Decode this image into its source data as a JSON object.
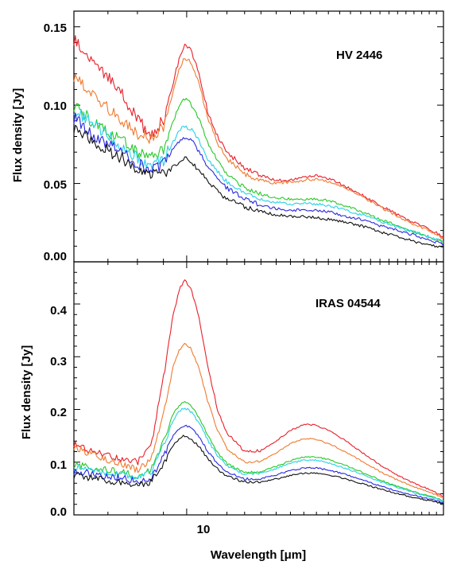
{
  "chart_data": [
    {
      "type": "line",
      "panel_label": "HV 2446",
      "ylabel": "Flux density [Jy]",
      "xlabel": "",
      "x_scale": "log",
      "xlim": [
        6.0,
        32.0
      ],
      "ylim": [
        0.0,
        0.16
      ],
      "y_ticks": [
        "0.00",
        "0.05",
        "0.10",
        "0.15"
      ],
      "y_tick_values": [
        0.0,
        0.05,
        0.1,
        0.15
      ],
      "x_ticks": [],
      "x_tick_values": [],
      "series": [
        {
          "color": "#e8202a",
          "x": [
            6.0,
            6.5,
            7.0,
            7.5,
            8.0,
            8.5,
            9.0,
            9.4,
            9.7,
            9.9,
            10.2,
            10.6,
            11.0,
            11.5,
            12.0,
            13.0,
            14.0,
            15.0,
            16.0,
            17.0,
            18.0,
            19.0,
            20.0,
            22.0,
            24.0,
            26.0,
            28.0,
            30.0,
            32.0
          ],
          "y": [
            0.142,
            0.128,
            0.118,
            0.106,
            0.09,
            0.082,
            0.09,
            0.114,
            0.132,
            0.139,
            0.136,
            0.118,
            0.096,
            0.08,
            0.07,
            0.06,
            0.055,
            0.052,
            0.052,
            0.054,
            0.055,
            0.053,
            0.05,
            0.043,
            0.036,
            0.03,
            0.025,
            0.021,
            0.016
          ]
        },
        {
          "color": "#f07a30",
          "x": [
            6.0,
            6.5,
            7.0,
            7.5,
            8.0,
            8.5,
            9.0,
            9.4,
            9.7,
            9.9,
            10.2,
            10.6,
            11.0,
            11.5,
            12.0,
            13.0,
            14.0,
            15.0,
            16.0,
            17.0,
            18.0,
            19.0,
            20.0,
            22.0,
            24.0,
            26.0,
            28.0,
            30.0,
            32.0
          ],
          "y": [
            0.119,
            0.106,
            0.098,
            0.09,
            0.082,
            0.078,
            0.086,
            0.108,
            0.124,
            0.13,
            0.128,
            0.112,
            0.092,
            0.076,
            0.066,
            0.056,
            0.052,
            0.05,
            0.051,
            0.052,
            0.053,
            0.051,
            0.049,
            0.042,
            0.035,
            0.029,
            0.024,
            0.02,
            0.015
          ]
        },
        {
          "color": "#28c828",
          "x": [
            6.0,
            6.5,
            7.0,
            7.5,
            8.0,
            8.5,
            9.0,
            9.4,
            9.7,
            9.9,
            10.2,
            10.6,
            11.0,
            11.5,
            12.0,
            13.0,
            14.0,
            15.0,
            16.0,
            17.0,
            18.0,
            19.0,
            20.0,
            22.0,
            24.0,
            26.0,
            28.0,
            30.0,
            32.0
          ],
          "y": [
            0.1,
            0.09,
            0.083,
            0.077,
            0.07,
            0.066,
            0.072,
            0.09,
            0.101,
            0.104,
            0.101,
            0.09,
            0.076,
            0.064,
            0.056,
            0.047,
            0.043,
            0.041,
            0.04,
            0.04,
            0.04,
            0.039,
            0.037,
            0.032,
            0.027,
            0.023,
            0.019,
            0.016,
            0.012
          ]
        },
        {
          "color": "#2ad0e8",
          "x": [
            6.0,
            6.5,
            7.0,
            7.5,
            8.0,
            8.5,
            9.0,
            9.4,
            9.7,
            9.9,
            10.2,
            10.6,
            11.0,
            11.5,
            12.0,
            13.0,
            14.0,
            15.0,
            16.0,
            17.0,
            18.0,
            19.0,
            20.0,
            22.0,
            24.0,
            26.0,
            28.0,
            30.0,
            32.0
          ],
          "y": [
            0.098,
            0.088,
            0.08,
            0.073,
            0.066,
            0.062,
            0.065,
            0.076,
            0.084,
            0.087,
            0.085,
            0.077,
            0.066,
            0.058,
            0.051,
            0.044,
            0.04,
            0.038,
            0.037,
            0.037,
            0.037,
            0.036,
            0.034,
            0.03,
            0.026,
            0.022,
            0.019,
            0.016,
            0.013
          ]
        },
        {
          "color": "#2828e0",
          "x": [
            6.0,
            6.5,
            7.0,
            7.5,
            8.0,
            8.5,
            9.0,
            9.4,
            9.7,
            9.9,
            10.2,
            10.6,
            11.0,
            11.5,
            12.0,
            13.0,
            14.0,
            15.0,
            16.0,
            17.0,
            18.0,
            19.0,
            20.0,
            22.0,
            24.0,
            26.0,
            28.0,
            30.0,
            32.0
          ],
          "y": [
            0.092,
            0.082,
            0.075,
            0.069,
            0.063,
            0.059,
            0.062,
            0.072,
            0.078,
            0.08,
            0.078,
            0.07,
            0.061,
            0.053,
            0.047,
            0.04,
            0.036,
            0.034,
            0.033,
            0.033,
            0.033,
            0.032,
            0.03,
            0.027,
            0.023,
            0.02,
            0.017,
            0.014,
            0.011
          ]
        },
        {
          "color": "#101010",
          "x": [
            6.0,
            6.5,
            7.0,
            7.5,
            8.0,
            8.5,
            9.0,
            9.4,
            9.7,
            9.9,
            10.2,
            10.6,
            11.0,
            11.5,
            12.0,
            13.0,
            14.0,
            15.0,
            16.0,
            17.0,
            18.0,
            19.0,
            20.0,
            22.0,
            24.0,
            26.0,
            28.0,
            30.0,
            32.0
          ],
          "y": [
            0.086,
            0.077,
            0.071,
            0.066,
            0.059,
            0.055,
            0.055,
            0.06,
            0.064,
            0.066,
            0.064,
            0.058,
            0.051,
            0.045,
            0.04,
            0.035,
            0.032,
            0.03,
            0.029,
            0.029,
            0.028,
            0.027,
            0.026,
            0.023,
            0.019,
            0.016,
            0.013,
            0.011,
            0.009
          ]
        }
      ]
    },
    {
      "type": "line",
      "panel_label": "IRAS 04544",
      "ylabel": "Flux density [Jy]",
      "xlabel": "Wavelength [μm]",
      "x_scale": "log",
      "xlim": [
        6.0,
        32.0
      ],
      "ylim": [
        0.0,
        0.48
      ],
      "y_ticks": [
        "0.0",
        "0.1",
        "0.2",
        "0.3",
        "0.4"
      ],
      "y_tick_values": [
        0.0,
        0.1,
        0.2,
        0.3,
        0.4
      ],
      "x_ticks": [
        "10"
      ],
      "x_tick_values": [
        10
      ],
      "series": [
        {
          "color": "#e8202a",
          "x": [
            6.0,
            6.5,
            7.0,
            7.5,
            8.0,
            8.5,
            9.0,
            9.4,
            9.7,
            9.9,
            10.2,
            10.6,
            11.0,
            11.5,
            12.0,
            13.0,
            14.0,
            15.0,
            16.0,
            17.0,
            18.0,
            19.0,
            20.0,
            22.0,
            24.0,
            26.0,
            28.0,
            30.0,
            32.0
          ],
          "y": [
            0.135,
            0.12,
            0.112,
            0.105,
            0.1,
            0.13,
            0.26,
            0.38,
            0.43,
            0.445,
            0.43,
            0.37,
            0.28,
            0.2,
            0.155,
            0.12,
            0.122,
            0.14,
            0.16,
            0.172,
            0.17,
            0.16,
            0.148,
            0.12,
            0.095,
            0.075,
            0.06,
            0.048,
            0.035
          ]
        },
        {
          "color": "#f07a30",
          "x": [
            6.0,
            6.5,
            7.0,
            7.5,
            8.0,
            8.5,
            9.0,
            9.4,
            9.7,
            9.9,
            10.2,
            10.6,
            11.0,
            11.5,
            12.0,
            13.0,
            14.0,
            15.0,
            16.0,
            17.0,
            18.0,
            19.0,
            20.0,
            22.0,
            24.0,
            26.0,
            28.0,
            30.0,
            32.0
          ],
          "y": [
            0.13,
            0.115,
            0.105,
            0.095,
            0.085,
            0.105,
            0.19,
            0.28,
            0.315,
            0.325,
            0.315,
            0.275,
            0.215,
            0.16,
            0.125,
            0.1,
            0.102,
            0.118,
            0.135,
            0.145,
            0.143,
            0.135,
            0.125,
            0.103,
            0.082,
            0.066,
            0.053,
            0.043,
            0.032
          ]
        },
        {
          "color": "#28c828",
          "x": [
            6.0,
            6.5,
            7.0,
            7.5,
            8.0,
            8.5,
            9.0,
            9.4,
            9.7,
            9.9,
            10.2,
            10.6,
            11.0,
            11.5,
            12.0,
            13.0,
            14.0,
            15.0,
            16.0,
            17.0,
            18.0,
            19.0,
            20.0,
            22.0,
            24.0,
            26.0,
            28.0,
            30.0,
            32.0
          ],
          "y": [
            0.095,
            0.09,
            0.085,
            0.08,
            0.075,
            0.085,
            0.14,
            0.19,
            0.21,
            0.215,
            0.208,
            0.183,
            0.15,
            0.118,
            0.097,
            0.08,
            0.082,
            0.092,
            0.103,
            0.11,
            0.11,
            0.105,
            0.098,
            0.082,
            0.066,
            0.054,
            0.044,
            0.036,
            0.027
          ]
        },
        {
          "color": "#2ad0e8",
          "x": [
            6.0,
            6.5,
            7.0,
            7.5,
            8.0,
            8.5,
            9.0,
            9.4,
            9.7,
            9.9,
            10.2,
            10.6,
            11.0,
            11.5,
            12.0,
            13.0,
            14.0,
            15.0,
            16.0,
            17.0,
            18.0,
            19.0,
            20.0,
            22.0,
            24.0,
            26.0,
            28.0,
            30.0,
            32.0
          ],
          "y": [
            0.09,
            0.085,
            0.08,
            0.076,
            0.072,
            0.08,
            0.132,
            0.18,
            0.198,
            0.203,
            0.196,
            0.173,
            0.142,
            0.112,
            0.093,
            0.077,
            0.079,
            0.088,
            0.098,
            0.104,
            0.104,
            0.099,
            0.092,
            0.078,
            0.063,
            0.052,
            0.042,
            0.034,
            0.026
          ]
        },
        {
          "color": "#2828e0",
          "x": [
            6.0,
            6.5,
            7.0,
            7.5,
            8.0,
            8.5,
            9.0,
            9.4,
            9.7,
            9.9,
            10.2,
            10.6,
            11.0,
            11.5,
            12.0,
            13.0,
            14.0,
            15.0,
            16.0,
            17.0,
            18.0,
            19.0,
            20.0,
            22.0,
            24.0,
            26.0,
            28.0,
            30.0,
            32.0
          ],
          "y": [
            0.082,
            0.078,
            0.073,
            0.069,
            0.065,
            0.07,
            0.11,
            0.15,
            0.166,
            0.17,
            0.165,
            0.146,
            0.121,
            0.097,
            0.081,
            0.068,
            0.069,
            0.076,
            0.084,
            0.089,
            0.089,
            0.085,
            0.08,
            0.068,
            0.055,
            0.045,
            0.037,
            0.03,
            0.023
          ]
        },
        {
          "color": "#101010",
          "x": [
            6.0,
            6.5,
            7.0,
            7.5,
            8.0,
            8.5,
            9.0,
            9.4,
            9.7,
            9.9,
            10.2,
            10.6,
            11.0,
            11.5,
            12.0,
            13.0,
            14.0,
            15.0,
            16.0,
            17.0,
            18.0,
            19.0,
            20.0,
            22.0,
            24.0,
            26.0,
            28.0,
            30.0,
            32.0
          ],
          "y": [
            0.075,
            0.07,
            0.065,
            0.061,
            0.058,
            0.062,
            0.098,
            0.132,
            0.146,
            0.15,
            0.145,
            0.128,
            0.107,
            0.087,
            0.073,
            0.062,
            0.062,
            0.068,
            0.075,
            0.079,
            0.079,
            0.076,
            0.071,
            0.06,
            0.049,
            0.04,
            0.033,
            0.027,
            0.021
          ]
        }
      ]
    }
  ]
}
